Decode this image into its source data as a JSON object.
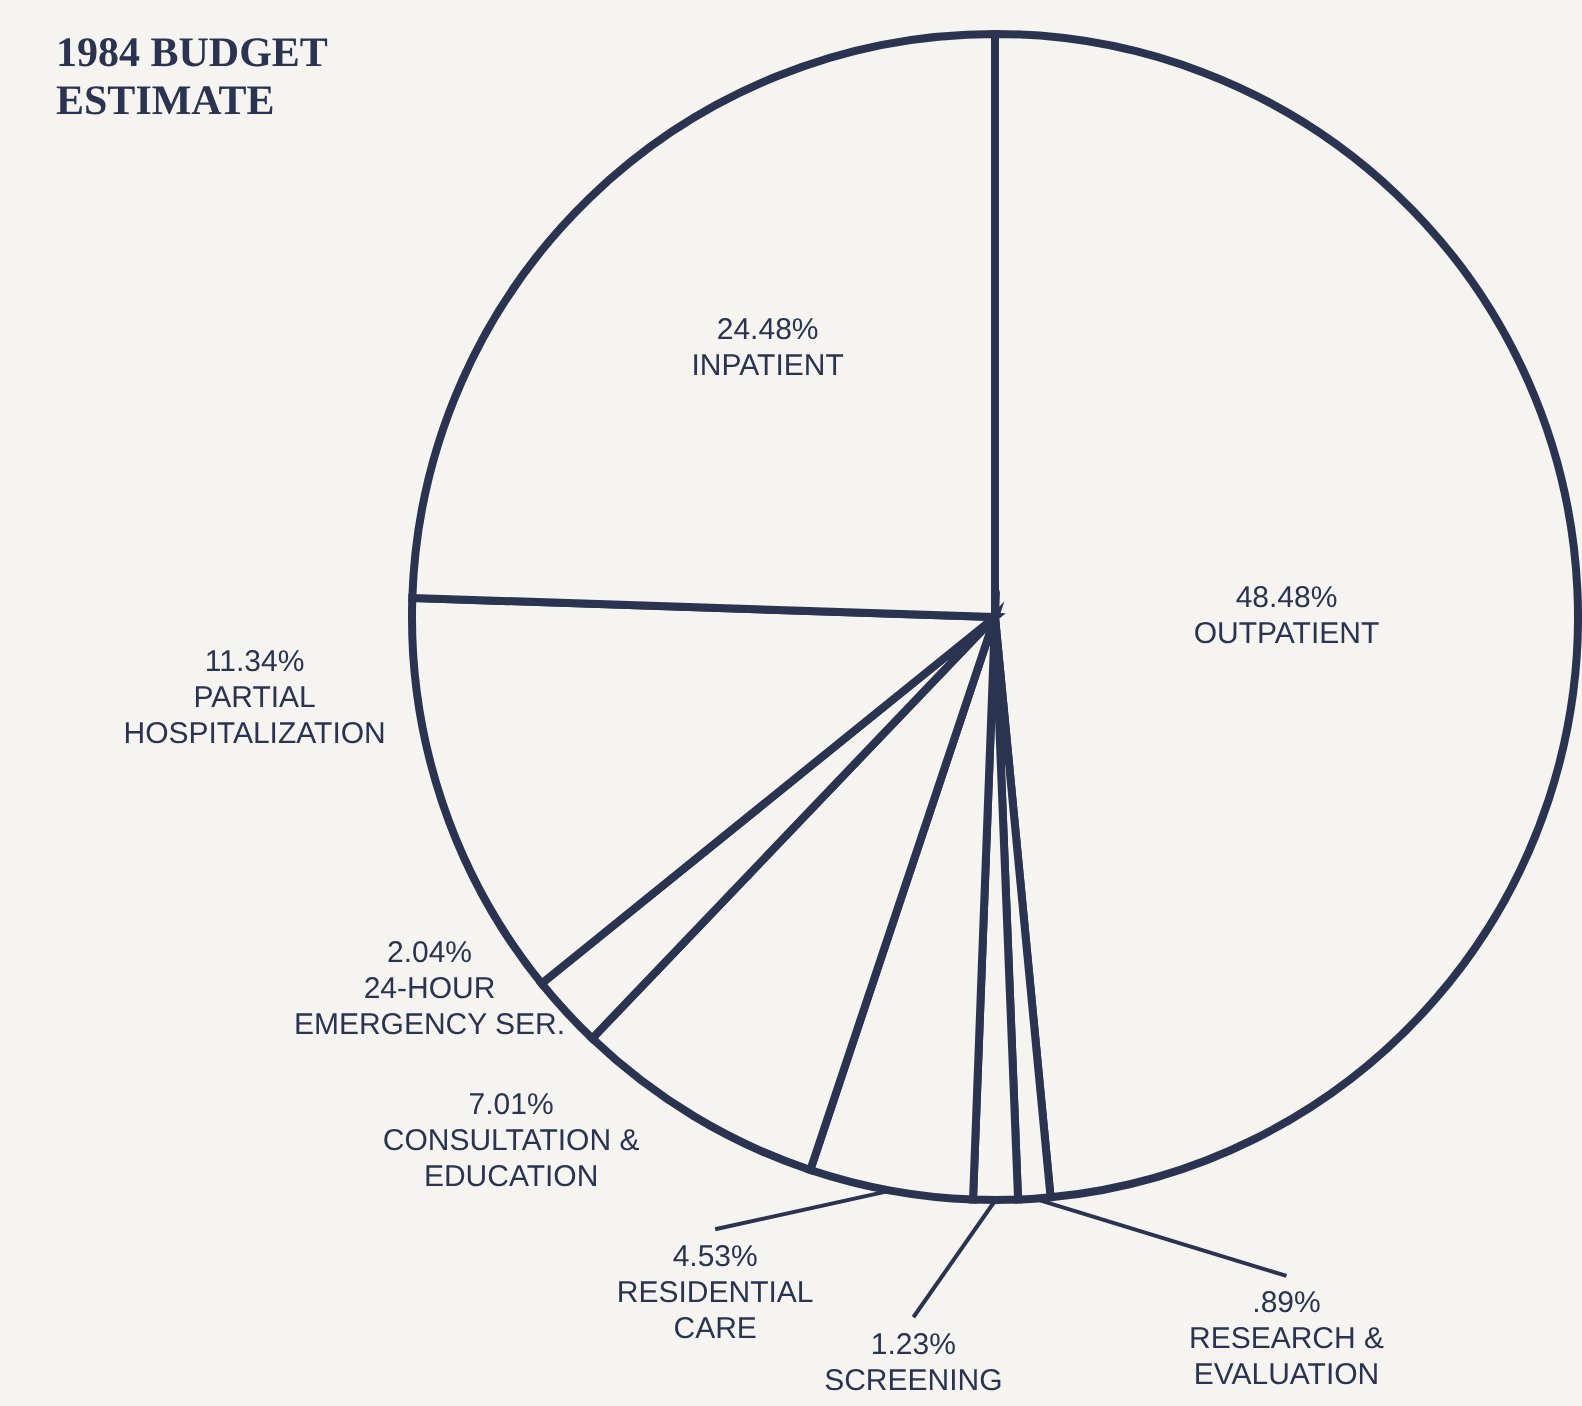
{
  "chart_data": {
    "type": "pie",
    "title": "1984 BUDGET ESTIMATE",
    "categories": [
      "OUTPATIENT",
      "RESEARCH & EVALUATION",
      "SCREENING",
      "RESIDENTIAL CARE",
      "CONSULTATION & EDUCATION",
      "24-HOUR EMERGENCY SER.",
      "PARTIAL HOSPITALIZATION",
      "INPATIENT"
    ],
    "values": [
      48.48,
      0.89,
      1.23,
      4.53,
      7.01,
      2.04,
      11.34,
      24.48
    ],
    "value_labels": [
      "48.48%",
      ".89%",
      "1.23%",
      "4.53%",
      "7.01%",
      "2.04%",
      "11.34%",
      "24.48%"
    ],
    "colors": [
      "#f5f4f0",
      "#f5f4f0",
      "#f5f4f0",
      "#f5f4f0",
      "#f5f4f0",
      "#f5f4f0",
      "#f5f4f0",
      "#f5f4f0"
    ],
    "legend": false
  }
}
